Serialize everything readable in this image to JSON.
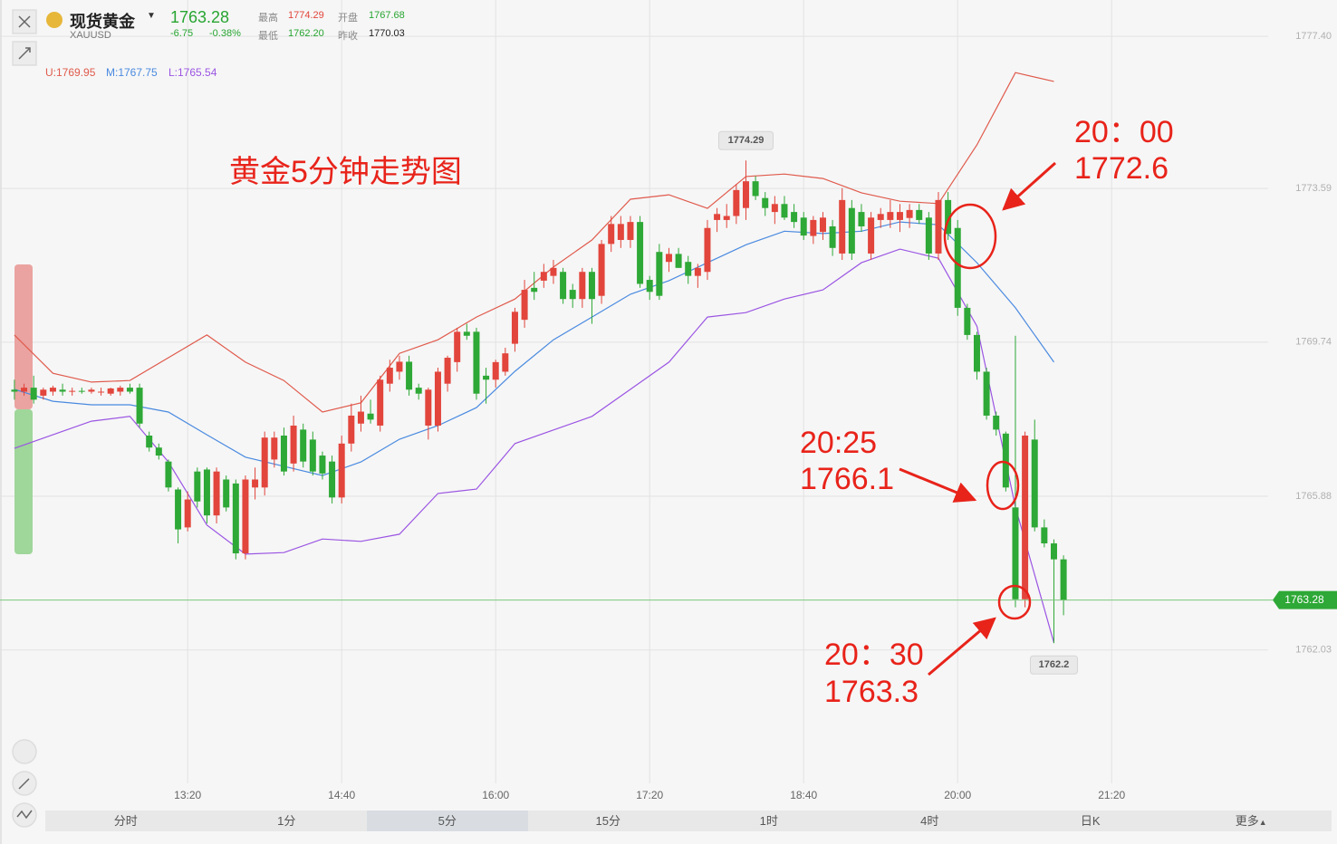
{
  "header": {
    "name": "现货黄金",
    "code": "XAUUSD",
    "price": "1763.28",
    "change": "-6.75",
    "change_pct": "-0.38%",
    "stats": [
      [
        "最高",
        "1774.29"
      ],
      [
        "开盘",
        "1767.68"
      ],
      [
        "最低",
        "1762.20"
      ],
      [
        "昨收",
        "1770.03"
      ]
    ]
  },
  "tabs": [
    "分时",
    "1分",
    "5分",
    "15分",
    "1时",
    "4时",
    "日K",
    "更多"
  ],
  "chart_data": {
    "type": "candlestick",
    "annotations": [
      "黄金5分钟走势图",
      "20：00",
      "1772.6",
      "20:25",
      "1766.1",
      "20：30",
      "1763.3"
    ],
    "xlim": [
      702.5,
      1361.3
    ],
    "ylim": [
      1758.69,
      1778.31
    ],
    "xticks": [
      {
        "value": 800,
        "label": "13:20"
      },
      {
        "value": 880,
        "label": "14:40"
      },
      {
        "value": 960,
        "label": "16:00"
      },
      {
        "value": 1040,
        "label": "17:20"
      },
      {
        "value": 1120,
        "label": "18:40"
      },
      {
        "value": 1200,
        "label": "20:00"
      },
      {
        "value": 1280,
        "label": "21:20"
      }
    ],
    "yticks": [
      {
        "value": 1777.4,
        "label": "1777.40"
      },
      1773.59,
      1769.74,
      1765.88,
      1762.03
    ],
    "grid": true,
    "up_color": "#e2453c",
    "down_color": "#2ea836",
    "last_price": 1763.28,
    "high_label": 1774.29,
    "low_label": 1762.2,
    "candles": {
      "x": [
        710,
        715,
        720,
        725,
        730,
        735,
        740,
        745,
        750,
        755,
        760,
        765,
        770,
        775,
        780,
        785,
        790,
        795,
        800,
        805,
        810,
        815,
        820,
        825,
        830,
        835,
        840,
        845,
        850,
        855,
        860,
        865,
        870,
        875,
        880,
        885,
        890,
        895,
        900,
        905,
        910,
        915,
        920,
        925,
        930,
        935,
        940,
        945,
        950,
        955,
        960,
        965,
        970,
        975,
        980,
        985,
        990,
        995,
        1000,
        1005,
        1010,
        1015,
        1020,
        1025,
        1030,
        1035,
        1040,
        1045,
        1050,
        1055,
        1060,
        1065,
        1070,
        1075,
        1080,
        1085,
        1090,
        1095,
        1100,
        1105,
        1110,
        1115,
        1120,
        1125,
        1130,
        1135,
        1140,
        1145,
        1150,
        1155,
        1160,
        1165,
        1170,
        1175,
        1180,
        1185,
        1190,
        1195,
        1200,
        1205,
        1210,
        1215,
        1220,
        1225,
        1230,
        1235,
        1240,
        1245,
        1250,
        1255
      ],
      "open": [
        1768.55,
        1768.5,
        1768.6,
        1768.4,
        1768.5,
        1768.55,
        1768.5,
        1768.52,
        1768.5,
        1768.5,
        1768.45,
        1768.5,
        1768.6,
        1768.6,
        1767.4,
        1767.1,
        1766.75,
        1766.05,
        1765.1,
        1766.5,
        1766.55,
        1765.4,
        1766.3,
        1766.2,
        1764.45,
        1766.1,
        1766.1,
        1766.8,
        1767.4,
        1766.7,
        1767.55,
        1767.3,
        1766.9,
        1766.75,
        1765.85,
        1767.2,
        1767.7,
        1767.95,
        1767.65,
        1768.7,
        1769.0,
        1769.25,
        1768.6,
        1767.65,
        1767.65,
        1768.7,
        1769.24,
        1770.0,
        1770.0,
        1768.9,
        1768.8,
        1769.0,
        1769.7,
        1770.3,
        1771.1,
        1771.28,
        1771.4,
        1771.5,
        1771.05,
        1770.82,
        1771.5,
        1770.9,
        1772.2,
        1772.3,
        1772.3,
        1772.75,
        1771.3,
        1772.0,
        1771.75,
        1771.95,
        1771.75,
        1771.4,
        1771.5,
        1772.8,
        1772.8,
        1772.9,
        1773.1,
        1773.77,
        1773.35,
        1773.0,
        1773.2,
        1773.0,
        1772.86,
        1772.4,
        1772.5,
        1772.64,
        1771.96,
        1773.1,
        1773.0,
        1771.96,
        1772.8,
        1772.8,
        1772.8,
        1772.85,
        1773.05,
        1772.86,
        1771.96,
        1773.3,
        1772.6,
        1770.6,
        1769.92,
        1769.0,
        1767.9,
        1767.45,
        1765.6,
        1763.3,
        1767.3,
        1765.1,
        1764.7,
        1764.3
      ],
      "high": [
        1768.8,
        1768.7,
        1768.9,
        1768.6,
        1768.65,
        1768.7,
        1768.6,
        1768.6,
        1768.6,
        1768.6,
        1768.6,
        1768.65,
        1768.7,
        1768.7,
        1767.5,
        1767.2,
        1766.8,
        1766.1,
        1766.0,
        1766.6,
        1766.6,
        1766.6,
        1766.4,
        1766.3,
        1766.4,
        1766.6,
        1767.5,
        1767.5,
        1767.6,
        1767.9,
        1767.7,
        1767.5,
        1767.0,
        1766.9,
        1767.4,
        1768.2,
        1768.4,
        1768.3,
        1768.9,
        1769.3,
        1769.4,
        1769.4,
        1768.7,
        1768.6,
        1769.1,
        1769.4,
        1770.1,
        1770.2,
        1770.1,
        1769.1,
        1769.3,
        1769.6,
        1770.6,
        1771.3,
        1771.5,
        1771.7,
        1771.8,
        1771.6,
        1771.2,
        1771.6,
        1771.6,
        1772.3,
        1772.9,
        1772.9,
        1772.9,
        1772.9,
        1771.4,
        1772.2,
        1772.1,
        1772.1,
        1771.9,
        1771.7,
        1772.8,
        1773.1,
        1773.2,
        1773.7,
        1774.29,
        1773.9,
        1773.5,
        1773.4,
        1773.4,
        1773.2,
        1773.0,
        1772.9,
        1773.0,
        1772.8,
        1773.6,
        1773.3,
        1773.2,
        1773.0,
        1773.1,
        1773.3,
        1773.2,
        1773.2,
        1773.2,
        1773.0,
        1773.5,
        1773.5,
        1772.8,
        1770.7,
        1770.0,
        1769.1,
        1768.0,
        1767.5,
        1769.9,
        1767.5,
        1767.8,
        1765.3,
        1764.8,
        1764.4
      ],
      "low": [
        1768.3,
        1768.4,
        1768.2,
        1768.3,
        1768.4,
        1768.4,
        1768.4,
        1768.45,
        1768.45,
        1768.4,
        1768.4,
        1768.4,
        1768.45,
        1767.6,
        1767.0,
        1766.8,
        1766.0,
        1764.7,
        1765.0,
        1765.6,
        1765.2,
        1765.2,
        1765.5,
        1764.3,
        1764.3,
        1765.8,
        1765.9,
        1766.6,
        1766.4,
        1766.5,
        1766.6,
        1766.4,
        1766.3,
        1765.7,
        1765.7,
        1767.0,
        1767.5,
        1767.7,
        1767.5,
        1768.5,
        1768.8,
        1768.4,
        1768.3,
        1767.3,
        1767.5,
        1768.5,
        1769.0,
        1769.8,
        1768.3,
        1768.2,
        1768.6,
        1768.9,
        1769.5,
        1770.1,
        1770.8,
        1771.1,
        1771.2,
        1770.7,
        1770.6,
        1770.6,
        1770.2,
        1770.7,
        1772.0,
        1772.1,
        1772.1,
        1771.1,
        1770.8,
        1770.8,
        1771.5,
        1771.6,
        1771.2,
        1771.1,
        1771.3,
        1772.5,
        1772.6,
        1772.7,
        1772.8,
        1773.3,
        1772.9,
        1772.7,
        1772.8,
        1772.6,
        1772.3,
        1772.2,
        1772.3,
        1771.9,
        1771.8,
        1771.8,
        1772.5,
        1771.8,
        1772.6,
        1772.6,
        1772.5,
        1772.6,
        1772.7,
        1771.8,
        1771.8,
        1772.3,
        1770.4,
        1769.8,
        1768.8,
        1767.8,
        1767.4,
        1766.0,
        1763.1,
        1763.1,
        1765.0,
        1764.6,
        1762.2,
        1762.9
      ],
      "close": [
        1768.5,
        1768.6,
        1768.3,
        1768.55,
        1768.6,
        1768.5,
        1768.52,
        1768.5,
        1768.55,
        1768.5,
        1768.58,
        1768.6,
        1768.5,
        1767.7,
        1767.1,
        1766.9,
        1766.1,
        1765.05,
        1765.8,
        1765.75,
        1765.4,
        1766.5,
        1765.6,
        1764.45,
        1766.3,
        1766.3,
        1767.35,
        1767.35,
        1766.5,
        1767.65,
        1766.75,
        1766.5,
        1766.45,
        1765.85,
        1767.2,
        1767.9,
        1768.0,
        1767.8,
        1768.8,
        1769.1,
        1769.25,
        1768.55,
        1768.45,
        1768.55,
        1769.0,
        1769.35,
        1770.0,
        1769.9,
        1768.45,
        1768.8,
        1769.24,
        1769.46,
        1770.5,
        1771.05,
        1771.0,
        1771.5,
        1771.6,
        1770.82,
        1770.82,
        1771.5,
        1770.82,
        1772.2,
        1772.7,
        1772.7,
        1772.75,
        1771.2,
        1771.0,
        1770.9,
        1771.95,
        1771.6,
        1771.4,
        1771.6,
        1772.6,
        1772.95,
        1772.9,
        1773.55,
        1773.77,
        1773.4,
        1773.1,
        1773.2,
        1772.86,
        1772.75,
        1772.41,
        1772.8,
        1772.86,
        1772.1,
        1773.3,
        1771.96,
        1772.64,
        1772.86,
        1772.95,
        1773.0,
        1773.0,
        1773.05,
        1772.8,
        1771.96,
        1773.3,
        1772.45,
        1770.6,
        1769.92,
        1769.0,
        1767.9,
        1767.55,
        1766.1,
        1763.3,
        1767.4,
        1765.1,
        1764.7,
        1764.3,
        1763.28
      ]
    },
    "bands": [
      {
        "label": "U:1769.95",
        "color": "#e05a4c",
        "x": [
          710,
          730,
          750,
          770,
          790,
          810,
          830,
          850,
          870,
          890,
          910,
          930,
          950,
          970,
          990,
          1010,
          1030,
          1050,
          1070,
          1090,
          1110,
          1130,
          1150,
          1170,
          1190,
          1210,
          1230,
          1250
        ],
        "values": [
          1769.92,
          1768.96,
          1768.74,
          1768.78,
          1769.35,
          1769.92,
          1769.24,
          1768.78,
          1767.99,
          1768.22,
          1769.46,
          1769.8,
          1770.37,
          1770.82,
          1771.62,
          1772.3,
          1773.32,
          1773.43,
          1773.09,
          1773.89,
          1773.95,
          1773.84,
          1773.48,
          1773.27,
          1773.21,
          1774.68,
          1776.49,
          1776.27
        ]
      },
      {
        "label": "M:1767.75",
        "color": "#4a8ae0",
        "x": [
          710,
          730,
          750,
          770,
          790,
          810,
          830,
          850,
          870,
          890,
          910,
          930,
          950,
          970,
          990,
          1010,
          1030,
          1050,
          1070,
          1090,
          1110,
          1130,
          1150,
          1170,
          1190,
          1210,
          1230,
          1250
        ],
        "values": [
          1768.56,
          1768.26,
          1768.17,
          1768.17,
          1767.99,
          1767.42,
          1766.86,
          1766.63,
          1766.4,
          1766.74,
          1767.31,
          1767.65,
          1768.1,
          1769.01,
          1769.8,
          1770.37,
          1770.94,
          1771.28,
          1771.73,
          1772.18,
          1772.52,
          1772.46,
          1772.52,
          1772.75,
          1772.68,
          1771.73,
          1770.6,
          1769.24
        ]
      },
      {
        "label": "L:1765.54",
        "color": "#9b55e3",
        "x": [
          710,
          730,
          750,
          770,
          790,
          810,
          830,
          850,
          870,
          890,
          910,
          930,
          950,
          970,
          990,
          1010,
          1030,
          1050,
          1070,
          1090,
          1110,
          1130,
          1150,
          1170,
          1190,
          1210,
          1230,
          1250
        ],
        "values": [
          1767.08,
          1767.42,
          1767.76,
          1767.88,
          1766.74,
          1765.16,
          1764.43,
          1764.47,
          1764.81,
          1764.75,
          1764.93,
          1765.95,
          1766.06,
          1767.2,
          1767.54,
          1767.88,
          1768.56,
          1769.24,
          1770.37,
          1770.48,
          1770.82,
          1771.05,
          1771.73,
          1772.07,
          1771.84,
          1770.14,
          1765.61,
          1762.21
        ]
      }
    ]
  }
}
